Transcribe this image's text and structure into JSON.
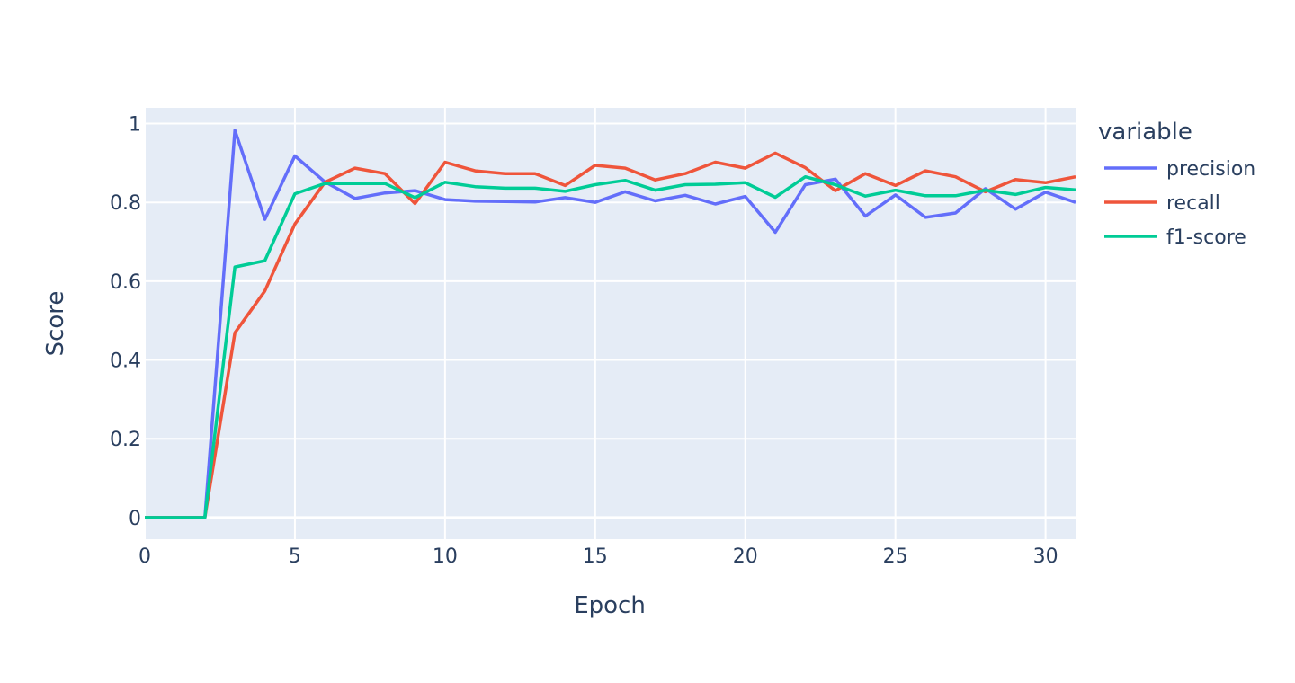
{
  "chart_data": {
    "type": "line",
    "title": "",
    "xlabel": "Epoch",
    "ylabel": "Score",
    "xlim": [
      0,
      31
    ],
    "ylim": [
      -0.055,
      1.04
    ],
    "xticks": [
      0,
      5,
      10,
      15,
      20,
      25,
      30
    ],
    "xtick_labels": [
      "0",
      "5",
      "10",
      "15",
      "20",
      "25",
      "30"
    ],
    "yticks": [
      0,
      0.2,
      0.4,
      0.6,
      0.8,
      1
    ],
    "ytick_labels": [
      "0",
      "0.2",
      "0.4",
      "0.6",
      "0.8",
      "1"
    ],
    "grid": true,
    "legend_title": "variable",
    "legend_position": "right",
    "x": [
      0,
      1,
      2,
      3,
      4,
      5,
      6,
      7,
      8,
      9,
      10,
      11,
      12,
      13,
      14,
      15,
      16,
      17,
      18,
      19,
      20,
      21,
      22,
      23,
      24,
      25,
      26,
      27,
      28,
      29,
      30,
      31
    ],
    "series": [
      {
        "name": "precision",
        "color": "#636efa",
        "values": [
          0,
          0,
          0,
          0.983,
          0.757,
          0.918,
          0.852,
          0.81,
          0.824,
          0.83,
          0.807,
          0.803,
          0.802,
          0.801,
          0.812,
          0.8,
          0.827,
          0.804,
          0.818,
          0.796,
          0.815,
          0.724,
          0.845,
          0.859,
          0.765,
          0.819,
          0.762,
          0.773,
          0.835,
          0.783,
          0.826,
          0.8
        ]
      },
      {
        "name": "recall",
        "color": "#ef553b",
        "values": [
          0,
          0,
          0,
          0.469,
          0.575,
          0.745,
          0.851,
          0.887,
          0.873,
          0.797,
          0.902,
          0.88,
          0.873,
          0.873,
          0.843,
          0.894,
          0.887,
          0.857,
          0.873,
          0.902,
          0.887,
          0.925,
          0.888,
          0.83,
          0.873,
          0.843,
          0.88,
          0.865,
          0.827,
          0.858,
          0.85,
          0.865
        ]
      },
      {
        "name": "f1-score",
        "color": "#00cc96",
        "values": [
          0,
          0,
          0,
          0.636,
          0.652,
          0.822,
          0.848,
          0.848,
          0.848,
          0.812,
          0.851,
          0.84,
          0.836,
          0.836,
          0.828,
          0.845,
          0.856,
          0.831,
          0.845,
          0.846,
          0.85,
          0.813,
          0.865,
          0.845,
          0.816,
          0.831,
          0.817,
          0.817,
          0.831,
          0.82,
          0.838,
          0.832
        ]
      }
    ]
  }
}
